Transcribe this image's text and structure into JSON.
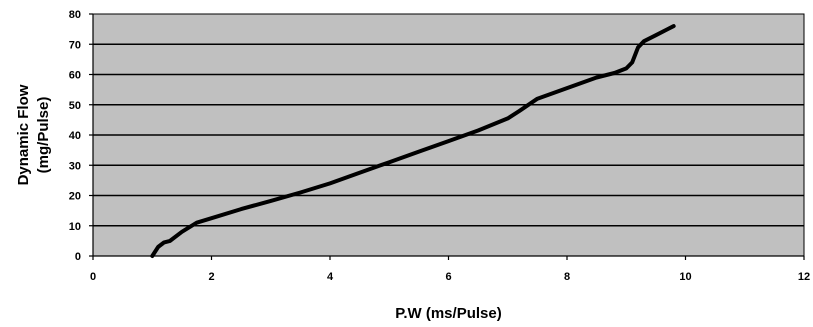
{
  "chart_data": {
    "type": "line",
    "title": "",
    "xlabel": "P.W  (ms/Pulse)",
    "ylabel_line1": "Dynamic Flow",
    "ylabel_line2": "(mg/Pulse)",
    "xlim": [
      0,
      12
    ],
    "ylim": [
      0,
      80
    ],
    "x_ticks": [
      0,
      2,
      4,
      6,
      8,
      10,
      12
    ],
    "y_ticks": [
      0,
      10,
      20,
      30,
      40,
      50,
      60,
      70,
      80
    ],
    "grid": "horizontal",
    "plot_background": "#c0c0c0",
    "line_color": "#000000",
    "series": [
      {
        "x": [
          1.0,
          1.1,
          1.2,
          1.3,
          1.5,
          1.75,
          2.0,
          2.5,
          3.0,
          3.5,
          4.0,
          4.5,
          5.0,
          5.5,
          6.0,
          6.5,
          7.0,
          7.2,
          7.5,
          8.0,
          8.5,
          8.8,
          9.0,
          9.1,
          9.2,
          9.3,
          9.5,
          9.7,
          9.8
        ],
        "y": [
          0,
          3,
          4.5,
          5,
          8,
          11,
          12.5,
          15.5,
          18.2,
          21,
          24,
          27.5,
          31,
          34.5,
          38,
          41.5,
          45.5,
          48,
          52,
          55.5,
          59,
          60.5,
          62,
          64,
          69,
          71,
          73,
          75,
          76
        ]
      }
    ]
  }
}
